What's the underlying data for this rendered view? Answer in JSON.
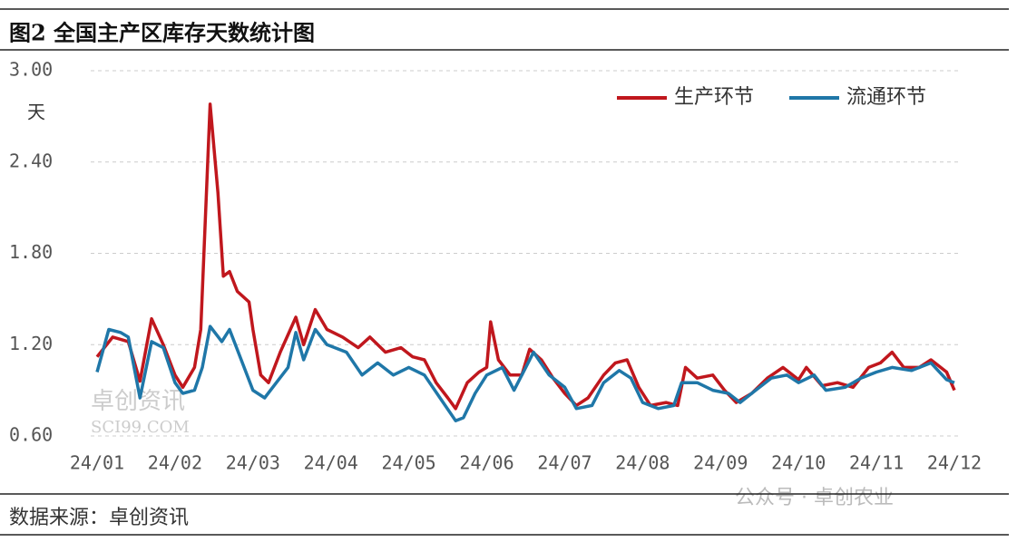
{
  "chart_data": {
    "type": "line",
    "title": "图2 全国主产区库存天数统计图",
    "y_unit": "天",
    "source": "数据来源：卓创资讯",
    "watermarks": [
      "卓创资讯",
      "SCI99.COM",
      "公众号 · 卓创农业"
    ],
    "xlim": [
      0,
      11
    ],
    "xticks": [
      {
        "value": 0,
        "label": "24/01"
      },
      {
        "value": 1,
        "label": "24/02"
      },
      {
        "value": 2,
        "label": "24/03"
      },
      {
        "value": 3,
        "label": "24/04"
      },
      {
        "value": 4,
        "label": "24/05"
      },
      {
        "value": 5,
        "label": "24/06"
      },
      {
        "value": 6,
        "label": "24/07"
      },
      {
        "value": 7,
        "label": "24/08"
      },
      {
        "value": 8,
        "label": "24/09"
      },
      {
        "value": 9,
        "label": "24/10"
      },
      {
        "value": 10,
        "label": "24/11"
      },
      {
        "value": 11,
        "label": "24/12"
      }
    ],
    "ylim": [
      0.6,
      3.0
    ],
    "yticks": [
      {
        "value": 0.6,
        "label": "0.60"
      },
      {
        "value": 1.2,
        "label": "1.20"
      },
      {
        "value": 1.8,
        "label": "1.80"
      },
      {
        "value": 2.4,
        "label": "2.40"
      },
      {
        "value": 3.0,
        "label": "3.00"
      }
    ],
    "grid": true,
    "legend": "top-right",
    "series": [
      {
        "name": "生产环节",
        "color": "#c0171d",
        "x": [
          0,
          0.2,
          0.4,
          0.55,
          0.7,
          0.85,
          1.0,
          1.1,
          1.25,
          1.33,
          1.45,
          1.55,
          1.62,
          1.7,
          1.8,
          1.95,
          2.0,
          2.1,
          2.2,
          2.35,
          2.55,
          2.65,
          2.8,
          2.95,
          3.15,
          3.35,
          3.5,
          3.7,
          3.9,
          4.05,
          4.2,
          4.35,
          4.5,
          4.6,
          4.75,
          4.9,
          5.0,
          5.05,
          5.15,
          5.3,
          5.45,
          5.55,
          5.7,
          5.85,
          6.0,
          6.15,
          6.3,
          6.5,
          6.65,
          6.8,
          6.95,
          7.1,
          7.3,
          7.45,
          7.55,
          7.7,
          7.9,
          8.05,
          8.2,
          8.4,
          8.6,
          8.8,
          9.0,
          9.1,
          9.3,
          9.5,
          9.7,
          9.9,
          10.05,
          10.2,
          10.35,
          10.55,
          10.7,
          10.9,
          11.0
        ],
        "values": [
          1.12,
          1.25,
          1.22,
          0.96,
          1.37,
          1.2,
          1.0,
          0.92,
          1.05,
          1.3,
          2.78,
          2.2,
          1.65,
          1.68,
          1.55,
          1.48,
          1.3,
          1.0,
          0.95,
          1.15,
          1.38,
          1.2,
          1.43,
          1.3,
          1.25,
          1.18,
          1.25,
          1.15,
          1.18,
          1.12,
          1.1,
          0.95,
          0.85,
          0.78,
          0.95,
          1.02,
          1.05,
          1.35,
          1.1,
          1.0,
          1.0,
          1.17,
          1.1,
          0.98,
          0.88,
          0.8,
          0.85,
          1.0,
          1.08,
          1.1,
          0.92,
          0.8,
          0.82,
          0.8,
          1.05,
          0.98,
          1.0,
          0.9,
          0.82,
          0.88,
          0.98,
          1.05,
          0.97,
          1.05,
          0.93,
          0.95,
          0.92,
          1.05,
          1.08,
          1.15,
          1.05,
          1.05,
          1.1,
          1.02,
          0.9
        ]
      },
      {
        "name": "流通环节",
        "color": "#1f77a8",
        "x": [
          0,
          0.15,
          0.3,
          0.4,
          0.55,
          0.7,
          0.85,
          1.0,
          1.1,
          1.25,
          1.35,
          1.45,
          1.6,
          1.7,
          1.85,
          2.0,
          2.15,
          2.3,
          2.45,
          2.55,
          2.65,
          2.8,
          2.95,
          3.2,
          3.4,
          3.6,
          3.8,
          4.0,
          4.2,
          4.4,
          4.6,
          4.7,
          4.85,
          5.0,
          5.2,
          5.35,
          5.5,
          5.6,
          5.8,
          6.0,
          6.15,
          6.35,
          6.5,
          6.7,
          6.85,
          7.0,
          7.2,
          7.4,
          7.5,
          7.7,
          7.9,
          8.1,
          8.25,
          8.45,
          8.65,
          8.85,
          9.0,
          9.2,
          9.35,
          9.6,
          9.8,
          10.0,
          10.2,
          10.45,
          10.7,
          10.9,
          11.0
        ],
        "values": [
          1.02,
          1.3,
          1.28,
          1.25,
          0.85,
          1.22,
          1.18,
          0.95,
          0.88,
          0.9,
          1.05,
          1.32,
          1.22,
          1.3,
          1.1,
          0.9,
          0.85,
          0.95,
          1.05,
          1.28,
          1.1,
          1.3,
          1.2,
          1.15,
          1.0,
          1.08,
          1.0,
          1.05,
          1.0,
          0.85,
          0.7,
          0.72,
          0.88,
          1.0,
          1.05,
          0.9,
          1.05,
          1.15,
          1.0,
          0.92,
          0.78,
          0.8,
          0.95,
          1.03,
          0.98,
          0.82,
          0.78,
          0.8,
          0.95,
          0.95,
          0.9,
          0.88,
          0.82,
          0.9,
          0.98,
          1.0,
          0.95,
          1.0,
          0.9,
          0.92,
          0.98,
          1.02,
          1.05,
          1.03,
          1.08,
          0.97,
          0.95
        ]
      }
    ]
  }
}
